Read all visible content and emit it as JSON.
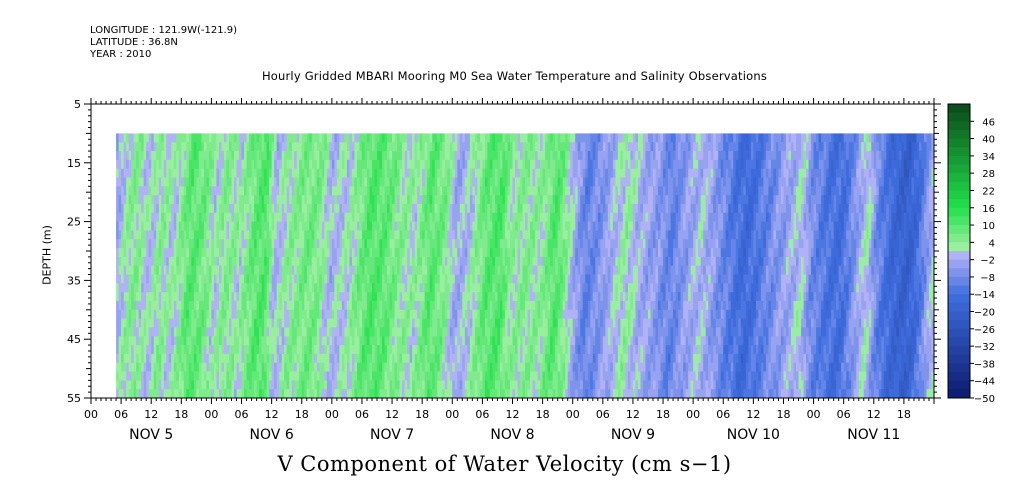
{
  "meta": {
    "longitude": "LONGITUDE : 121.9W(-121.9)",
    "latitude": "LATITUDE : 36.8N",
    "year": "YEAR : 2010"
  },
  "plot_title": "Hourly Gridded MBARI Mooring M0 Sea Water Temperature and Salinity Observations",
  "x_title": "V Component of Water Velocity (cm s−1)",
  "y_title": "DEPTH (m)",
  "chart_data": {
    "type": "heatmap",
    "title": "Hourly Gridded MBARI Mooring M0 Sea Water Temperature and Salinity Observations",
    "xlabel": "V Component of Water Velocity (cm s−1)",
    "ylabel": "DEPTH (m)",
    "x_range_hours": [
      0,
      168
    ],
    "x_data_start_hour": 5,
    "y_ticks": [
      5,
      15,
      25,
      35,
      45,
      55
    ],
    "ylim": [
      5,
      55
    ],
    "data_depth_range": [
      10,
      55
    ],
    "hour_tick_labels": [
      "00",
      "06",
      "12",
      "18"
    ],
    "day_labels": [
      "NOV  5",
      "NOV  6",
      "NOV  7",
      "NOV  8",
      "NOV  9",
      "NOV 10",
      "NOV 11"
    ],
    "colorbar_labels": [
      "46",
      "40",
      "34",
      "28",
      "22",
      "16",
      "10",
      "4",
      "−2",
      "−8",
      "−14",
      "−20",
      "−26",
      "−32",
      "−38",
      "−44",
      "−50"
    ],
    "color_range": [
      -50,
      52
    ],
    "color_step": 3,
    "velocity_profile": [
      {
        "hour": 5,
        "v": -4
      },
      {
        "hour": 7,
        "v": 2
      },
      {
        "hour": 9,
        "v": 5
      },
      {
        "hour": 12,
        "v": 0
      },
      {
        "hour": 14,
        "v": 4
      },
      {
        "hour": 17,
        "v": 1
      },
      {
        "hour": 20,
        "v": 10
      },
      {
        "hour": 23,
        "v": 7
      },
      {
        "hour": 25,
        "v": 1
      },
      {
        "hour": 27,
        "v": 5
      },
      {
        "hour": 30,
        "v": 2
      },
      {
        "hour": 33,
        "v": 9
      },
      {
        "hour": 35,
        "v": 11
      },
      {
        "hour": 37,
        "v": -1
      },
      {
        "hour": 40,
        "v": 4
      },
      {
        "hour": 44,
        "v": 7
      },
      {
        "hour": 46,
        "v": 5
      },
      {
        "hour": 48,
        "v": -1
      },
      {
        "hour": 52,
        "v": 2
      },
      {
        "hour": 56,
        "v": 11
      },
      {
        "hour": 59,
        "v": 9
      },
      {
        "hour": 62,
        "v": 4
      },
      {
        "hour": 65,
        "v": 2
      },
      {
        "hour": 68,
        "v": 10
      },
      {
        "hour": 71,
        "v": 5
      },
      {
        "hour": 73,
        "v": -3
      },
      {
        "hour": 76,
        "v": 1
      },
      {
        "hour": 79,
        "v": 9
      },
      {
        "hour": 82,
        "v": 11
      },
      {
        "hour": 84,
        "v": 3
      },
      {
        "hour": 87,
        "v": 5
      },
      {
        "hour": 90,
        "v": 3
      },
      {
        "hour": 93,
        "v": 11
      },
      {
        "hour": 95,
        "v": 4
      },
      {
        "hour": 97,
        "v": -4
      },
      {
        "hour": 99,
        "v": -10
      },
      {
        "hour": 102,
        "v": -6
      },
      {
        "hour": 105,
        "v": 0
      },
      {
        "hour": 107,
        "v": 3
      },
      {
        "hour": 110,
        "v": -2
      },
      {
        "hour": 113,
        "v": -5
      },
      {
        "hour": 116,
        "v": -10
      },
      {
        "hour": 119,
        "v": -4
      },
      {
        "hour": 122,
        "v": 0
      },
      {
        "hour": 125,
        "v": -6
      },
      {
        "hour": 128,
        "v": -12
      },
      {
        "hour": 131,
        "v": -16
      },
      {
        "hour": 134,
        "v": -11
      },
      {
        "hour": 137,
        "v": -6
      },
      {
        "hour": 140,
        "v": -2
      },
      {
        "hour": 142,
        "v": 1
      },
      {
        "hour": 144,
        "v": -8
      },
      {
        "hour": 147,
        "v": -13
      },
      {
        "hour": 150,
        "v": -15
      },
      {
        "hour": 153,
        "v": -4
      },
      {
        "hour": 155,
        "v": 2
      },
      {
        "hour": 157,
        "v": -9
      },
      {
        "hour": 160,
        "v": -17
      },
      {
        "hour": 163,
        "v": -20
      },
      {
        "hour": 165,
        "v": -15
      },
      {
        "hour": 168,
        "v": 0
      }
    ]
  },
  "colors": {
    "neg_high": "#0b1a6e",
    "neg_mid": "#3f6fe0",
    "neg_low": "#b4b4f6",
    "pos_low": "#b0f0b0",
    "pos_mid": "#22e04a",
    "pos_high": "#0a4a1a"
  }
}
